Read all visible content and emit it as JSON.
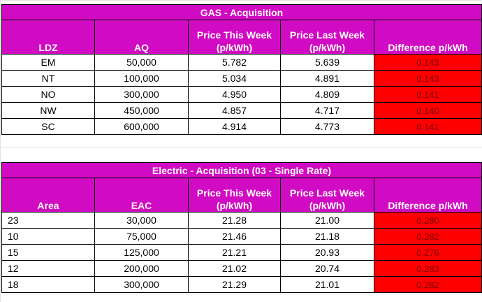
{
  "gas": {
    "title": "GAS - Acquisition",
    "columns": [
      "LDZ",
      "AQ",
      "Price This Week (p/kWh)",
      "Price Last Week (p/kWh)",
      "Difference p/kWh"
    ],
    "col_headers": {
      "c1": "LDZ",
      "c2": "AQ",
      "c3a": "Price This Week",
      "c3b": "(p/kWh)",
      "c4a": "Price Last Week",
      "c4b": "(p/kWh)",
      "c5": "Difference p/kWh"
    },
    "rows": [
      [
        "EM",
        "50,000",
        "5.782",
        "5.639",
        "0.143"
      ],
      [
        "NT",
        "100,000",
        "5.034",
        "4.891",
        "0.143"
      ],
      [
        "NO",
        "300,000",
        "4.950",
        "4.809",
        "0.141"
      ],
      [
        "NW",
        "450,000",
        "4.857",
        "4.717",
        "0.140"
      ],
      [
        "SC",
        "600,000",
        "4.914",
        "4.773",
        "0.141"
      ]
    ]
  },
  "electric": {
    "title": "Electric - Acquisition (03 - Single Rate)",
    "col_headers": {
      "c1": "Area",
      "c2": "EAC",
      "c3a": "Price This Week",
      "c3b": "(p/kWh)",
      "c4a": "Price Last Week",
      "c4b": "(p/kWh)",
      "c5": "Difference p/kWh"
    },
    "rows": [
      [
        "23",
        "30,000",
        "21.28",
        "21.00",
        "0.280"
      ],
      [
        "10",
        "75,000",
        "21.46",
        "21.18",
        "0.282"
      ],
      [
        "15",
        "125,000",
        "21.21",
        "20.93",
        "0.276"
      ],
      [
        "12",
        "200,000",
        "21.02",
        "20.74",
        "0.283"
      ],
      [
        "18",
        "300,000",
        "21.29",
        "21.01",
        "0.282"
      ]
    ]
  },
  "colors": {
    "header_bg": "#d10ac3",
    "difference_bg": "#ff0000"
  }
}
